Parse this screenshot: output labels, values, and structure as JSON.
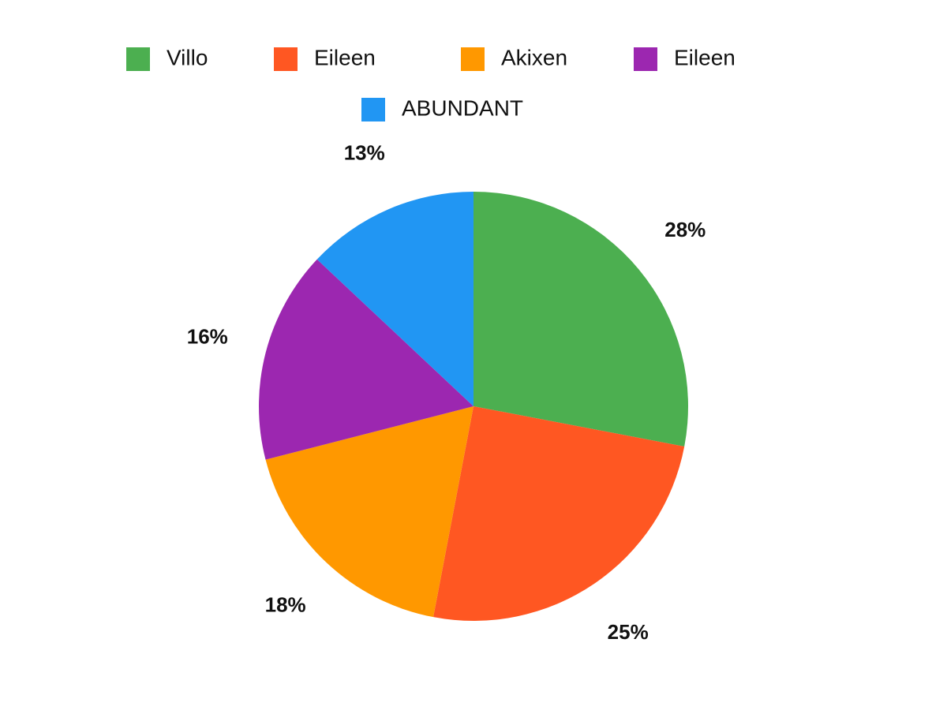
{
  "chart_data": {
    "type": "pie",
    "categories": [
      "Villo",
      "Eileen",
      "Akixen",
      "Eileen",
      "ABUNDANT"
    ],
    "values": [
      28,
      25,
      18,
      16,
      13
    ],
    "value_labels": [
      "28%",
      "25%",
      "18%",
      "16%",
      "13%"
    ],
    "colors": [
      "#4caf50",
      "#ff5722",
      "#ff9800",
      "#9c27b0",
      "#2196f3"
    ],
    "legend": "top"
  }
}
